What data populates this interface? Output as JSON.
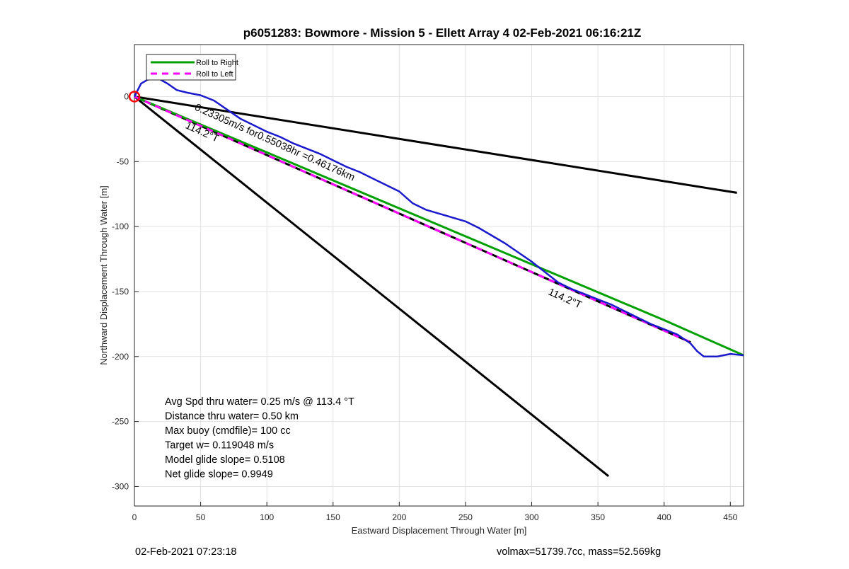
{
  "chart_data": {
    "type": "line",
    "title": "p6051283: Bowmore - Mission 5 - Ellett Array 4 02-Feb-2021 06:16:21Z",
    "xlabel": "Eastward Displacement Through Water [m]",
    "ylabel": "Northward Displacement Through Water [m]",
    "xlim": [
      0,
      460
    ],
    "ylim": [
      -315,
      40
    ],
    "xticks": [
      0,
      50,
      100,
      150,
      200,
      250,
      300,
      350,
      400,
      450
    ],
    "yticks": [
      0,
      -50,
      -100,
      -150,
      -200,
      -250,
      -300
    ],
    "grid": true,
    "legend": {
      "placement": "top-left",
      "entries": [
        "Roll to Right",
        "Roll to Left"
      ]
    },
    "colors": {
      "roll_right": "#00a000",
      "roll_left": "#ff00ff",
      "track": "#1a1acc",
      "lines": "#000000",
      "start_marker": "#ff0000"
    },
    "series": [
      {
        "name": "Roll to Right",
        "style": "green",
        "x": [
          0,
          100,
          200,
          300,
          400,
          460
        ],
        "y": [
          0,
          -43,
          -86,
          -129,
          -172,
          -199
        ]
      },
      {
        "name": "Roll to Left",
        "style": "magenta-dashed",
        "x": [
          0,
          100,
          200,
          300,
          420
        ],
        "y": [
          0,
          -45,
          -90,
          -135,
          -189
        ]
      },
      {
        "style": "track",
        "x": [
          0,
          5,
          10,
          18,
          25,
          32,
          40,
          50,
          60,
          70,
          80,
          90,
          100,
          110,
          120,
          130,
          140,
          150,
          160,
          170,
          180,
          190,
          200,
          210,
          220,
          230,
          240,
          250,
          260,
          270,
          280,
          290,
          300,
          310,
          320,
          330,
          340,
          350,
          360,
          370,
          380,
          390,
          400,
          410,
          420,
          425,
          430,
          440,
          450,
          460
        ],
        "y": [
          0,
          10,
          13,
          14,
          10,
          5,
          3,
          1,
          -3,
          -10,
          -17,
          -22,
          -27,
          -31,
          -36,
          -40,
          -44,
          -49,
          -54,
          -58,
          -63,
          -68,
          -73,
          -82,
          -87,
          -90,
          -93,
          -96,
          -101,
          -107,
          -113,
          -120,
          -127,
          -135,
          -143,
          -148,
          -152,
          -156,
          -160,
          -165,
          -170,
          -175,
          -179,
          -183,
          -190,
          -196,
          -200,
          -200,
          -198,
          -199
        ]
      },
      {
        "style": "black",
        "x": [
          0,
          455
        ],
        "y": [
          0,
          -74
        ]
      },
      {
        "style": "black",
        "x": [
          0,
          358
        ],
        "y": [
          0,
          -292
        ]
      },
      {
        "style": "black",
        "x": [
          0,
          420
        ],
        "y": [
          0,
          -189
        ]
      }
    ],
    "annotations": [
      {
        "text": "0.23305m/s for0.55038hr =0.46176km",
        "x": 45,
        "y": -10,
        "angle": 24.2
      },
      {
        "text": "114.2°T",
        "x": 38,
        "y": -24,
        "angle": 24.2
      },
      {
        "text": "114.2°T",
        "x": 312,
        "y": -152,
        "angle": 24.2
      }
    ],
    "stats_text": [
      "Avg Spd thru water=  0.25 m/s @ 113.4 °T",
      "Distance thru water=  0.50 km",
      "Max buoy (cmdfile)= 100 cc",
      "Target w= 0.119048 m/s",
      "Model glide slope= 0.5108",
      "Net glide slope= 0.9949"
    ]
  },
  "footer": {
    "left": "02-Feb-2021 07:23:18",
    "right": "volmax=51739.7cc, mass=52.569kg"
  }
}
